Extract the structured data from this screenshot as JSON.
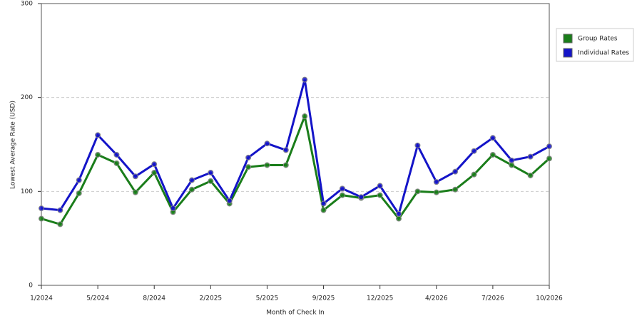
{
  "chart_data": {
    "type": "line",
    "x_label": "Month of Check In",
    "y_label": "Lowest Average Rate (USD)",
    "categories": [
      "1/2024",
      null,
      null,
      "5/2024",
      null,
      null,
      "8/2024",
      null,
      null,
      "2/2025",
      null,
      null,
      "5/2025",
      null,
      null,
      "9/2025",
      null,
      null,
      "12/2025",
      null,
      null,
      "4/2026",
      null,
      null,
      "7/2026",
      null,
      null,
      "10/2026"
    ],
    "series": [
      {
        "name": "Group Rates",
        "color": "#1a7d1a",
        "values": [
          71,
          65,
          98,
          139,
          130,
          99,
          120,
          78,
          102,
          111,
          87,
          126,
          128,
          128,
          180,
          80,
          96,
          93,
          96,
          71,
          100,
          99,
          102,
          118,
          139,
          128,
          117,
          135
        ]
      },
      {
        "name": "Individual Rates",
        "color": "#1414c8",
        "values": [
          82,
          80,
          112,
          160,
          139,
          116,
          129,
          82,
          112,
          120,
          90,
          136,
          151,
          144,
          219,
          87,
          103,
          94,
          106,
          76,
          149,
          110,
          121,
          143,
          157,
          133,
          137,
          148
        ]
      }
    ],
    "ylim": [
      0,
      300
    ],
    "yticks": [
      0,
      100,
      200,
      300
    ],
    "grid": true,
    "legend": "top-right"
  }
}
